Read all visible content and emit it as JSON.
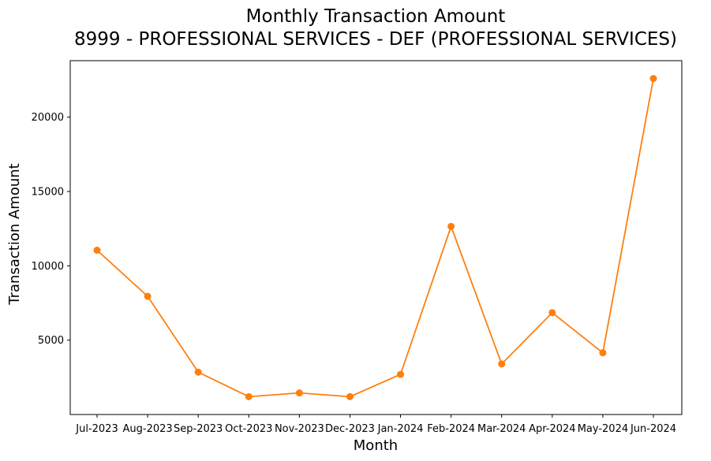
{
  "chart_data": {
    "type": "line",
    "title": "Monthly Transaction Amount",
    "subtitle": "8999 - PROFESSIONAL SERVICES - DEF (PROFESSIONAL SERVICES)",
    "xlabel": "Month",
    "ylabel": "Transaction Amount",
    "categories": [
      "Jul-2023",
      "Aug-2023",
      "Sep-2023",
      "Oct-2023",
      "Nov-2023",
      "Dec-2023",
      "Jan-2024",
      "Feb-2024",
      "Mar-2024",
      "Apr-2024",
      "May-2024",
      "Jun-2024"
    ],
    "series": [
      {
        "values": [
          11050,
          7950,
          2850,
          1200,
          1450,
          1200,
          2700,
          12650,
          3400,
          6850,
          4150,
          22600
        ],
        "color": "#ff7f0e"
      }
    ],
    "yticks": [
      5000,
      10000,
      15000,
      20000
    ],
    "ylim": [
      0,
      23800
    ],
    "grid": false,
    "legend": "none"
  }
}
